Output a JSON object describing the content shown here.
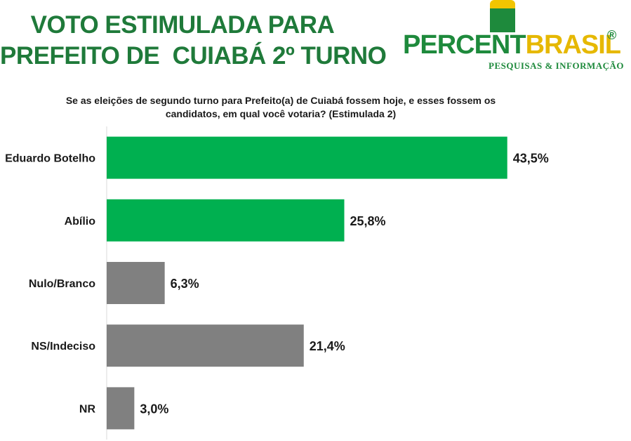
{
  "header": {
    "title_line1": "VOTO ESTIMULADA PARA",
    "title_line2": "PREFEITO DE  CUIABÁ 2º TURNO"
  },
  "logo": {
    "brand_part1": "PERCENT",
    "brand_part2": "BRASIL",
    "registered": "®",
    "tagline": "PESQUISAS & INFORMAÇÃO"
  },
  "question": {
    "line1": "Se as eleições de segundo turno para Prefeito(a) de Cuiabá fossem hoje, e esses fossem os",
    "line2": "candidatos, em qual você votaria? (Estimulada 2)"
  },
  "colors": {
    "candidate": "#00b050",
    "other": "#808080",
    "title": "#1f7a3a"
  },
  "chart_data": {
    "type": "bar",
    "orientation": "horizontal",
    "categories": [
      "Eduardo Botelho",
      "Abílio",
      "Nulo/Branco",
      "NS/Indeciso",
      "NR"
    ],
    "values": [
      43.5,
      25.8,
      6.3,
      21.4,
      3.0
    ],
    "labels": [
      "43,5%",
      "25,8%",
      "6,3%",
      "21,4%",
      "3,0%"
    ],
    "bar_colors": [
      "#00b050",
      "#00b050",
      "#808080",
      "#808080",
      "#808080"
    ],
    "xlim": [
      0,
      50
    ],
    "unit": "%",
    "grid": false,
    "legend": "none"
  }
}
